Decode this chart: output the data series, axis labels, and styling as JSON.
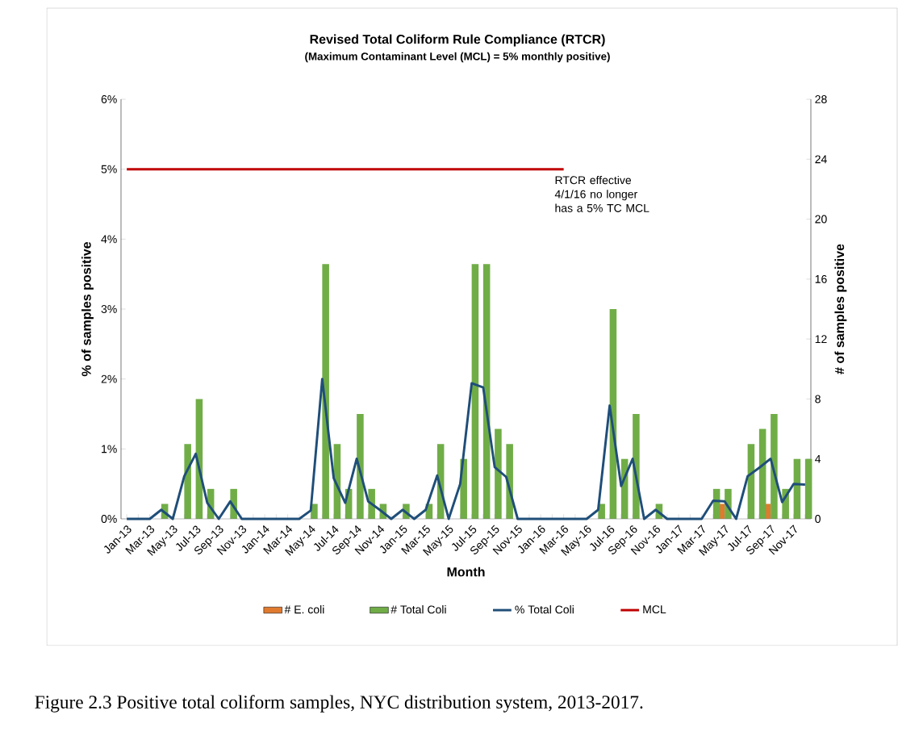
{
  "chart_data": {
    "type": "bar",
    "title": "Revised Total Coliform Rule Compliance (RTCR)",
    "subtitle": "(Maximum Contaminant Level (MCL) = 5% monthly positive)",
    "xlabel": "Month",
    "ylabel": "% of samples positive",
    "y2label": "# of samples positive",
    "categories": [
      "Jan-13",
      null,
      "Mar-13",
      null,
      "May-13",
      null,
      "Jul-13",
      null,
      "Sep-13",
      null,
      "Nov-13",
      null,
      "Jan-14",
      null,
      "Mar-14",
      null,
      "May-14",
      null,
      "Jul-14",
      null,
      "Sep-14",
      null,
      "Nov-14",
      null,
      "Jan-15",
      null,
      "Mar-15",
      null,
      "May-15",
      null,
      "Jul-15",
      null,
      "Sep-15",
      null,
      "Nov-15",
      null,
      "Jan-16",
      null,
      "Mar-16",
      null,
      "May-16",
      null,
      "Jul-16",
      null,
      "Sep-16",
      null,
      "Nov-16",
      null,
      "Jan-17",
      null,
      "Mar-17",
      null,
      "May-17",
      null,
      "Jul-17",
      null,
      "Sep-17",
      null,
      "Nov-17",
      null
    ],
    "series": [
      {
        "name": "# E. coli",
        "type": "bar",
        "axis": "y2",
        "color": "#e07a2f",
        "values": [
          0,
          0,
          0,
          0,
          0,
          0,
          0,
          0,
          0,
          0,
          0,
          0,
          0,
          0,
          0,
          0,
          0,
          0,
          0,
          0,
          0,
          0,
          0,
          0,
          0,
          0,
          0,
          0,
          0,
          0,
          0,
          0,
          0,
          0,
          0,
          0,
          0,
          0,
          0,
          0,
          0,
          0,
          0,
          0,
          0,
          0,
          0,
          0,
          0,
          0,
          0,
          0,
          1,
          0,
          0,
          0,
          1,
          0,
          0,
          0
        ]
      },
      {
        "name": "# Total Coli",
        "axis": "y2",
        "color": "#70ad47",
        "values": [
          0,
          0,
          0,
          1,
          0,
          5,
          8,
          2,
          0,
          2,
          0,
          0,
          0,
          0,
          0,
          0,
          1,
          17,
          5,
          2,
          7,
          2,
          1,
          0,
          1,
          0,
          1,
          5,
          0,
          4,
          17,
          17,
          6,
          5,
          0,
          0,
          0,
          0,
          0,
          0,
          0,
          1,
          14,
          4,
          7,
          0,
          1,
          0,
          0,
          0,
          0,
          2,
          2,
          0,
          5,
          6,
          7,
          2,
          4,
          4
        ]
      },
      {
        "name": "% Total Coli",
        "type": "line",
        "color": "#1f4e79",
        "values": [
          0,
          0,
          0,
          0.13,
          0,
          0.61,
          0.93,
          0.23,
          0,
          0.25,
          0,
          0,
          0,
          0,
          0,
          0,
          0.12,
          2.0,
          0.58,
          0.23,
          0.86,
          0.25,
          0.13,
          0,
          0.13,
          0,
          0.13,
          0.62,
          0,
          0.5,
          1.94,
          1.88,
          0.74,
          0.6,
          0,
          0,
          0,
          0,
          0,
          0,
          0,
          0.13,
          1.62,
          0.47,
          0.86,
          0,
          0.13,
          0,
          0,
          0,
          0,
          0.26,
          0.25,
          0,
          0.61,
          0.73,
          0.86,
          0.24,
          0.5,
          0.49
        ]
      },
      {
        "name": "MCL",
        "type": "line",
        "color": "#c00000",
        "values": [
          5,
          5,
          5,
          5,
          5,
          5,
          5,
          5,
          5,
          5,
          5,
          5,
          5,
          5,
          5,
          5,
          5,
          5,
          5,
          5,
          5,
          5,
          5,
          5,
          5,
          5,
          5,
          5,
          5,
          5,
          5,
          5,
          5,
          5,
          5,
          5,
          5,
          5,
          5,
          null,
          null,
          null,
          null,
          null,
          null,
          null,
          null,
          null,
          null,
          null,
          null,
          null,
          null,
          null,
          null,
          null,
          null,
          null,
          null,
          null
        ]
      }
    ],
    "ylim": [
      0,
      6
    ],
    "yticks": [
      {
        "value": 0,
        "label": "0%"
      },
      {
        "value": 1,
        "label": "1%"
      },
      {
        "value": 2,
        "label": "2%"
      },
      {
        "value": 3,
        "label": "3%"
      },
      {
        "value": 4,
        "label": "4%"
      },
      {
        "value": 5,
        "label": "5%"
      },
      {
        "value": 6,
        "label": "6%"
      }
    ],
    "y2lim": [
      0,
      28
    ],
    "y2ticks": [
      0,
      4,
      8,
      12,
      16,
      20,
      24,
      28
    ],
    "legend": "bottom",
    "annotations": [
      {
        "text": "RTCR effective 4/1/16 no longer has a 5% TC MCL",
        "x": "Mar-16",
        "y": 5
      },
      "Figure 2.3 Positive total coliform samples, NYC distribution system, 2013-2017."
    ]
  }
}
